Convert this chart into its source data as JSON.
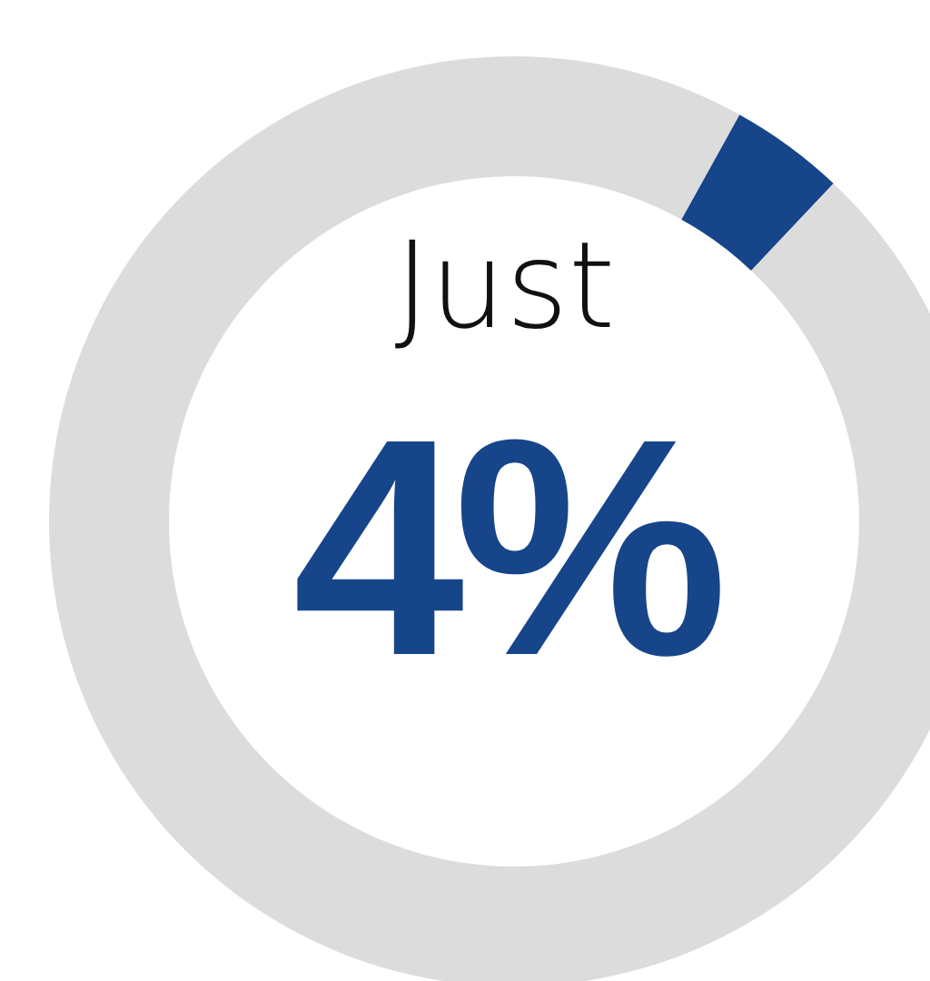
{
  "chart_data": {
    "type": "donut",
    "categories": [
      null,
      null
    ],
    "values": [
      4,
      96
    ],
    "colors": [
      "#17458a",
      "#dcdcdc"
    ],
    "annotations": [
      "Just",
      "4%"
    ]
  }
}
